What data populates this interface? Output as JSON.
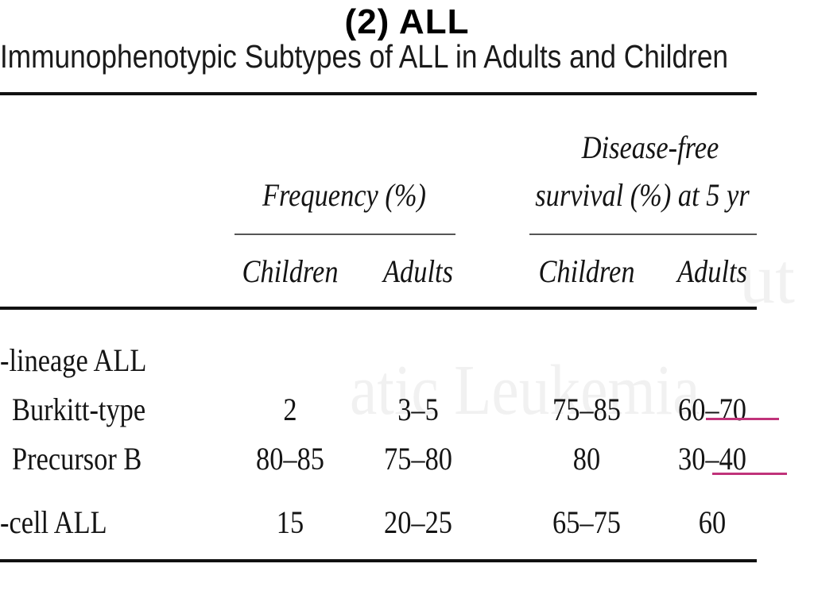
{
  "slide": {
    "title": "(2) ALL",
    "table_title": "Immunophenotypic Subtypes of ALL in Adults and Children"
  },
  "table": {
    "group_headers": {
      "frequency": "Frequency (%)",
      "dfs_line1": "Disease-free",
      "dfs_line2": "survival (%) at 5 yr"
    },
    "sub_headers": [
      "Children",
      "Adults",
      "Children",
      "Adults"
    ],
    "rows": [
      {
        "label": "-lineage ALL",
        "values": [
          "",
          "",
          "",
          ""
        ]
      },
      {
        "label": "Burkitt-type",
        "values": [
          "2",
          "3–5",
          "75–85",
          "60–70"
        ]
      },
      {
        "label": "Precursor B",
        "values": [
          "80–85",
          "75–80",
          "80",
          "30–40"
        ]
      },
      {
        "label": "-cell ALL",
        "values": [
          "15",
          "20–25",
          "65–75",
          "60"
        ]
      }
    ]
  },
  "colors": {
    "highlight_underline": "#c0337a"
  }
}
